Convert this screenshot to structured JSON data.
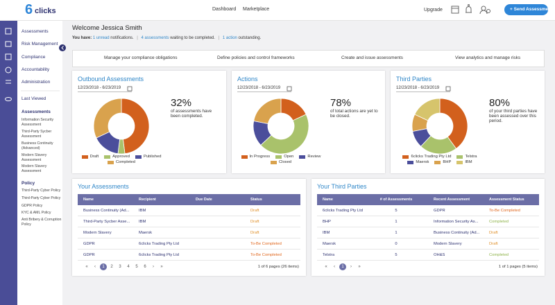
{
  "header": {
    "logo_mark": "6",
    "logo_text": "clicks",
    "nav": [
      "Dashboard",
      "Marketplace"
    ],
    "upgrade": "Upgrade",
    "button": "+ Send Assessment"
  },
  "sidebar": {
    "menu": [
      "Assessments",
      "Risk Management",
      "Compliance",
      "Accountability",
      "Administration"
    ],
    "last_viewed": "Last Viewed",
    "groups": [
      {
        "title": "Assessments",
        "items": [
          "Information Security Assessment",
          "Third-Party Sycber Assessment",
          "Business Continuity (Advanced)",
          "Modern Slavery Assessment",
          "Modern Slavery Assessment"
        ]
      },
      {
        "title": "Policy",
        "items": [
          "Third-Party Cyber Policy",
          "Third-Party Cyber Policy",
          "GDPR Policy",
          "KYC & AML Policy",
          "Anti Bribery & Corruption Policy"
        ]
      }
    ]
  },
  "welcome": {
    "title": "Welcome Jessica Smith",
    "prefix": "You have:",
    "separator": "|",
    "parts": [
      {
        "link": "1 unread",
        "text": "notifications."
      },
      {
        "link": "4 assessments",
        "text": "waiting to be completed."
      },
      {
        "link": "1 action",
        "text": "outstanding."
      }
    ]
  },
  "actions": [
    "Manage your compliance obligations",
    "Define policies and control frameworks",
    "Create and issue assessments",
    "View analytics and manage risks"
  ],
  "cards": [
    {
      "title": "Outbound Assessments",
      "date": "12/23/2018 - 6/23/2019",
      "percent": "32%",
      "caption": "of assessments have been completed.",
      "chart": {
        "type": "pie",
        "categories": [
          "Draft",
          "Approved",
          "Published",
          "Completed"
        ],
        "values": [
          48,
          4,
          16,
          32
        ],
        "colors": [
          "#d2601d",
          "#a9c26b",
          "#4b4e9b",
          "#d9a24d"
        ]
      }
    },
    {
      "title": "Actions",
      "date": "12/23/2018 - 6/23/2019",
      "percent": "78%",
      "caption": "of total actions are yet to be closed.",
      "chart": {
        "type": "pie",
        "categories": [
          "In Progress",
          "Open",
          "Review",
          "Closed"
        ],
        "values": [
          18,
          45,
          15,
          22
        ],
        "colors": [
          "#d2601d",
          "#a9c26b",
          "#4b4e9b",
          "#d9a24d"
        ]
      }
    },
    {
      "title": "Third Parties",
      "date": "12/23/2018 - 6/23/2019",
      "percent": "80%",
      "caption": "of your third parties have been assessed over this period.",
      "chart": {
        "type": "pie",
        "categories": [
          "6clicks Trading Pty Ltd",
          "Telstra",
          "Maersk",
          "BHP",
          "IBM"
        ],
        "values": [
          40,
          22,
          10,
          10,
          18
        ],
        "colors": [
          "#d2601d",
          "#a9c26b",
          "#4b4e9b",
          "#d9a24d",
          "#d6c46c"
        ]
      }
    }
  ],
  "status_colors": {
    "Draft": "#e0902a",
    "To-Be Completed": "#e0661c",
    "Completed": "#8db248"
  },
  "tables": [
    {
      "title": "Your Assessments",
      "columns": [
        "Name",
        "Recipient",
        "Due Date",
        "Status"
      ],
      "rows": [
        [
          "Business Continuity (Ad...",
          "IBM",
          null,
          "Draft"
        ],
        [
          "Third-Party Sycber Asse...",
          "IBM",
          null,
          "Draft"
        ],
        [
          "Modern Slavery",
          "Maersk",
          null,
          "Draft"
        ],
        [
          "GDPR",
          "6clicks Trading Pty Ltd",
          null,
          "To-Be Completed"
        ],
        [
          "GDPR",
          "6clicks Trading Pty Ltd",
          null,
          "To-Be Completed"
        ]
      ],
      "pager": [
        "«",
        "‹",
        "1",
        "2",
        "3",
        "4",
        "5",
        "6",
        "›",
        "»"
      ],
      "active": 2,
      "summary": "1 of 6 pages (26 items)"
    },
    {
      "title": "Your Third Parties",
      "columns": [
        "Name",
        "# of Assessments",
        "Recent Assessment",
        "Assessment Status"
      ],
      "rows": [
        [
          "6clicks Trading Pty Ltd",
          5,
          "GDPR",
          "To-Be Completed"
        ],
        [
          "BHP",
          1,
          "Information Security As...",
          "Completed"
        ],
        [
          "IBM",
          1,
          "Business Continuity (Ad...",
          "Draft"
        ],
        [
          "Maersk",
          0,
          "Modern Slavery",
          "Draft"
        ],
        [
          "Telstra",
          5,
          "OH&S",
          "Completed"
        ]
      ],
      "pager": [
        "«",
        "‹",
        "1",
        "›",
        "»"
      ],
      "active": 2,
      "summary": "1 of 1 pages (5 items)"
    }
  ]
}
